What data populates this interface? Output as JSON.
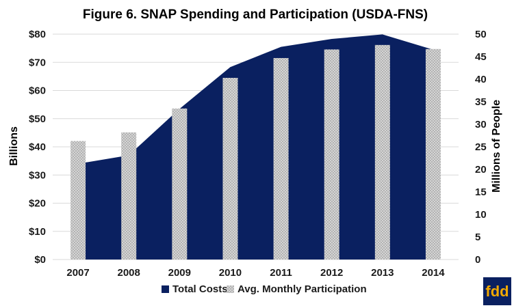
{
  "chart_data": {
    "type": "bar",
    "title": "Figure 6. SNAP Spending and Participation (USDA-FNS)",
    "categories": [
      "2007",
      "2008",
      "2009",
      "2010",
      "2011",
      "2012",
      "2013",
      "2014"
    ],
    "series": [
      {
        "name": "Total Costs",
        "type": "area",
        "axis": "left",
        "values": [
          34,
          37,
          53.5,
          68.3,
          75.5,
          78.3,
          79.9,
          74.5
        ],
        "color": "#0a2060"
      },
      {
        "name": "Avg. Monthly Participation",
        "type": "bar",
        "axis": "right",
        "values": [
          26.3,
          28.2,
          33.5,
          40.3,
          44.7,
          46.6,
          47.6,
          46.7
        ],
        "color": "#a6a6a6"
      }
    ],
    "ylabel": "Billions",
    "ylabel_right": "Millions of People",
    "ylim": [
      0,
      80
    ],
    "ylim_right": [
      0,
      50
    ],
    "yticks": [
      "$0",
      "$10",
      "$20",
      "$30",
      "$40",
      "$50",
      "$60",
      "$70",
      "$80"
    ],
    "yticks_right": [
      "0",
      "5",
      "10",
      "15",
      "20",
      "25",
      "30",
      "35",
      "40",
      "45",
      "50"
    ],
    "grid": true,
    "legend_position": "bottom"
  },
  "logo": {
    "text": "fdd",
    "bg_color": "#0a2060",
    "text_color": "#f2a900"
  }
}
